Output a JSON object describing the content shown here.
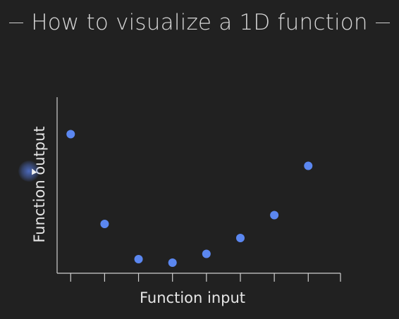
{
  "chart_data": {
    "type": "scatter",
    "title": "How to visualize a 1D function",
    "xlabel": "Function input",
    "ylabel": "Function output",
    "x": [
      1,
      2,
      3,
      4,
      5,
      6,
      7,
      8
    ],
    "y": [
      0.79,
      0.28,
      0.08,
      0.06,
      0.11,
      0.2,
      0.33,
      0.61
    ],
    "xlim": [
      0.6,
      8.95
    ],
    "ylim": [
      0,
      1
    ],
    "x_ticks": [
      1,
      2,
      3,
      4,
      5,
      6,
      7,
      8,
      9
    ],
    "show_tick_labels": false,
    "grid": false,
    "point_color": "#5b87f0",
    "axis_color": "#cfcfcf"
  }
}
